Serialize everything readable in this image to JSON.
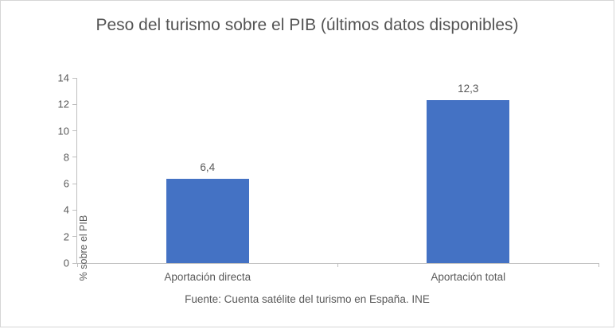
{
  "chart_data": {
    "type": "bar",
    "title": "Peso del turismo sobre el PIB (últimos datos disponibles)",
    "categories": [
      "Aportación directa",
      "Aportación total"
    ],
    "values": [
      6.4,
      12.3
    ],
    "value_labels": [
      "6,4",
      "12,3"
    ],
    "xlabel": "",
    "ylabel": "% sobre el PIB",
    "ylim": [
      0,
      14
    ],
    "yticks": [
      0,
      2,
      4,
      6,
      8,
      10,
      12,
      14
    ],
    "grid": false,
    "legend": false,
    "bar_color": "#4472C4",
    "axis_color": "#BFBFBF",
    "text_color": "#595959"
  },
  "source": "Fuente: Cuenta satélite del turismo en España. INE"
}
